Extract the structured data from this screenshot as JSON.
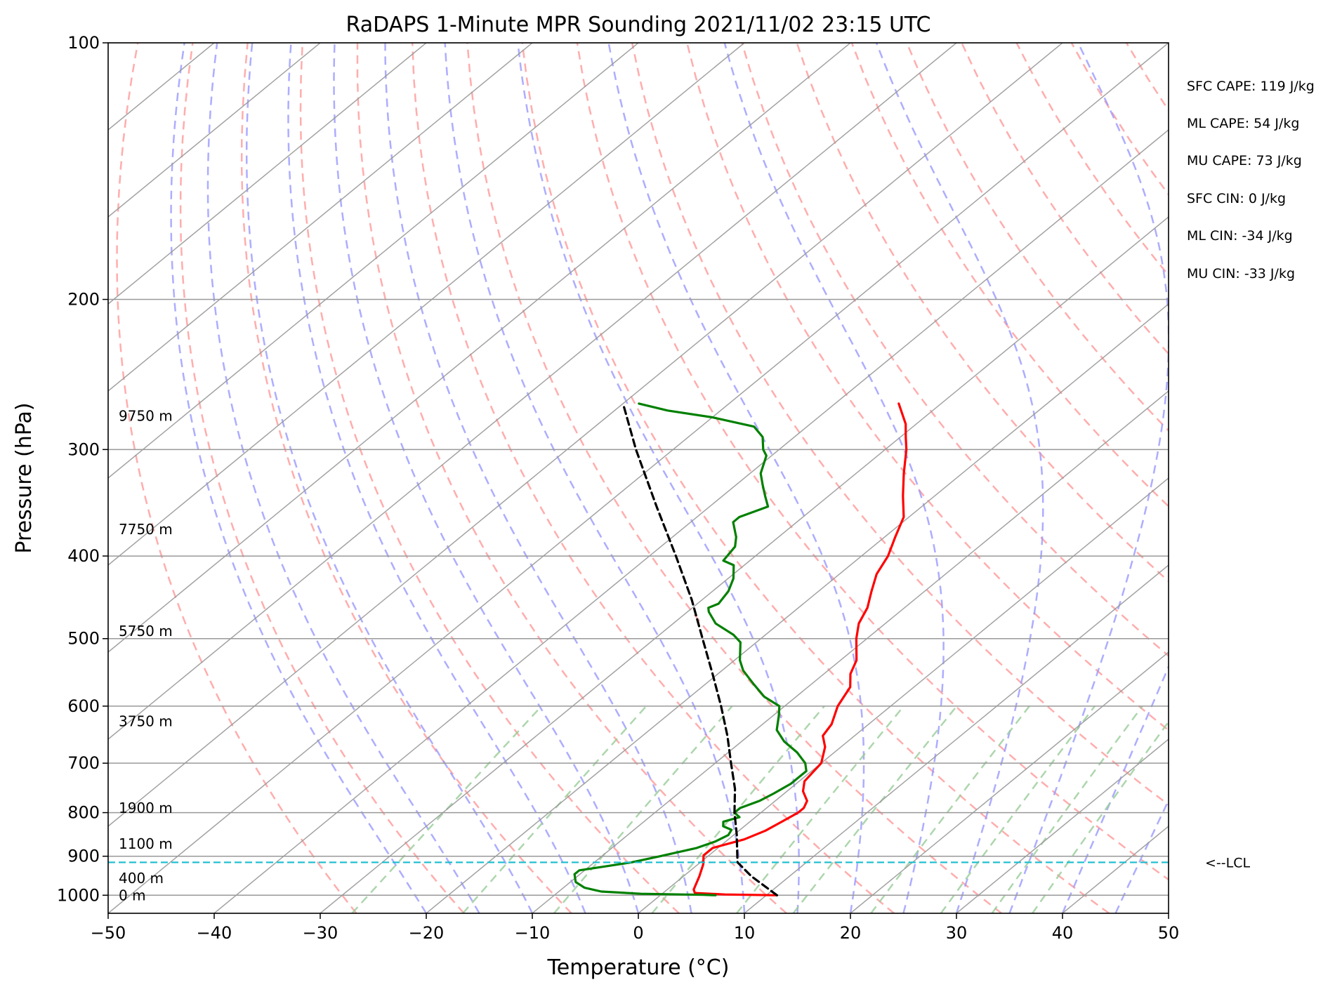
{
  "chart_data": {
    "type": "skew-t",
    "title": "RaDAPS 1-Minute MPR Sounding 2021/11/02 23:15 UTC",
    "xlabel": "Temperature (°C)",
    "ylabel": "Pressure (hPa)",
    "xlim": [
      -50,
      50
    ],
    "ylim": [
      1050,
      100
    ],
    "y_scale": "log",
    "grid": true,
    "x_ticks": [
      "−50",
      "−40",
      "−30",
      "−20",
      "−10",
      "0",
      "10",
      "20",
      "30",
      "40",
      "50"
    ],
    "y_ticks": [
      {
        "p": 100,
        "label": "100"
      },
      {
        "p": 200,
        "label": "200"
      },
      {
        "p": 300,
        "label": "300"
      },
      {
        "p": 400,
        "label": "400"
      },
      {
        "p": 500,
        "label": "500"
      },
      {
        "p": 600,
        "label": "600"
      },
      {
        "p": 700,
        "label": "700"
      },
      {
        "p": 800,
        "label": "800"
      },
      {
        "p": 900,
        "label": "900"
      },
      {
        "p": 1000,
        "label": "1000"
      }
    ],
    "height_labels": [
      {
        "p": 1000,
        "label": "0 m"
      },
      {
        "p": 955,
        "label": "400 m"
      },
      {
        "p": 870,
        "label": "1100 m"
      },
      {
        "p": 790,
        "label": "1900 m"
      },
      {
        "p": 625,
        "label": "3750 m"
      },
      {
        "p": 490,
        "label": "5750 m"
      },
      {
        "p": 372,
        "label": "7750 m"
      },
      {
        "p": 274,
        "label": "9750 m"
      }
    ],
    "stats": [
      "SFC CAPE: 119 J/kg",
      "ML CAPE: 54 J/kg",
      "MU CAPE: 73 J/kg",
      "SFC CIN: 0 J/kg",
      "ML CIN: -34 J/kg",
      "MU CIN: -33 J/kg"
    ],
    "lcl": {
      "p": 915,
      "label": "<--LCL"
    },
    "colors": {
      "temperature": "#ff0000",
      "dewpoint": "#008000",
      "parcel": "#000000",
      "lcl": "#17becf",
      "dry_adiabats": "#ff9999",
      "moist_adiabats": "#9999ff",
      "mixing_ratio": "#99cc99",
      "isotherms": "#999999"
    },
    "series": [
      {
        "name": "",
        "color": "#ff0000",
        "points": [
          {
            "p": 1000,
            "t": 11.0
          },
          {
            "p": 998,
            "t": 6.0
          },
          {
            "p": 994,
            "t": 3.0
          },
          {
            "p": 985,
            "t": 2.5
          },
          {
            "p": 950,
            "t": 1.5
          },
          {
            "p": 920,
            "t": 0.5
          },
          {
            "p": 898,
            "t": -0.5
          },
          {
            "p": 880,
            "t": -0.5
          },
          {
            "p": 860,
            "t": 1.5
          },
          {
            "p": 840,
            "t": 2.5
          },
          {
            "p": 820,
            "t": 3.0
          },
          {
            "p": 800,
            "t": 3.5
          },
          {
            "p": 790,
            "t": 3.5
          },
          {
            "p": 775,
            "t": 3.0
          },
          {
            "p": 755,
            "t": 1.5
          },
          {
            "p": 735,
            "t": 0.5
          },
          {
            "p": 700,
            "t": 0.0
          },
          {
            "p": 670,
            "t": -1.5
          },
          {
            "p": 650,
            "t": -3.0
          },
          {
            "p": 630,
            "t": -3.5
          },
          {
            "p": 600,
            "t": -5.0
          },
          {
            "p": 570,
            "t": -6.0
          },
          {
            "p": 550,
            "t": -7.5
          },
          {
            "p": 530,
            "t": -8.5
          },
          {
            "p": 500,
            "t": -11.0
          },
          {
            "p": 480,
            "t": -12.5
          },
          {
            "p": 460,
            "t": -13.5
          },
          {
            "p": 440,
            "t": -15.0
          },
          {
            "p": 420,
            "t": -16.5
          },
          {
            "p": 400,
            "t": -17.5
          },
          {
            "p": 380,
            "t": -19.0
          },
          {
            "p": 360,
            "t": -20.5
          },
          {
            "p": 340,
            "t": -23.0
          },
          {
            "p": 320,
            "t": -25.5
          },
          {
            "p": 300,
            "t": -28.0
          },
          {
            "p": 290,
            "t": -29.5
          },
          {
            "p": 280,
            "t": -31.0
          },
          {
            "p": 265,
            "t": -34.0
          }
        ]
      },
      {
        "name": "",
        "color": "#008000",
        "points": [
          {
            "p": 1000,
            "t": 5.2
          },
          {
            "p": 999,
            "t": 4.0
          },
          {
            "p": 996,
            "t": -2.0
          },
          {
            "p": 990,
            "t": -6.0
          },
          {
            "p": 980,
            "t": -8.0
          },
          {
            "p": 965,
            "t": -9.5
          },
          {
            "p": 945,
            "t": -10.5
          },
          {
            "p": 935,
            "t": -10.5
          },
          {
            "p": 925,
            "t": -8.5
          },
          {
            "p": 915,
            "t": -6.5
          },
          {
            "p": 900,
            "t": -4.5
          },
          {
            "p": 880,
            "t": -2.0
          },
          {
            "p": 865,
            "t": -1.0
          },
          {
            "p": 850,
            "t": -0.5
          },
          {
            "p": 838,
            "t": -0.8
          },
          {
            "p": 830,
            "t": -2.0
          },
          {
            "p": 820,
            "t": -2.5
          },
          {
            "p": 810,
            "t": -1.5
          },
          {
            "p": 800,
            "t": -2.5
          },
          {
            "p": 790,
            "t": -2.5
          },
          {
            "p": 775,
            "t": -1.5
          },
          {
            "p": 760,
            "t": -1.0
          },
          {
            "p": 740,
            "t": -0.5
          },
          {
            "p": 715,
            "t": -0.5
          },
          {
            "p": 700,
            "t": -1.5
          },
          {
            "p": 680,
            "t": -3.5
          },
          {
            "p": 660,
            "t": -6.0
          },
          {
            "p": 640,
            "t": -8.0
          },
          {
            "p": 615,
            "t": -9.5
          },
          {
            "p": 600,
            "t": -10.5
          },
          {
            "p": 585,
            "t": -13.0
          },
          {
            "p": 565,
            "t": -15.5
          },
          {
            "p": 545,
            "t": -18.0
          },
          {
            "p": 530,
            "t": -19.5
          },
          {
            "p": 505,
            "t": -21.5
          },
          {
            "p": 495,
            "t": -23.0
          },
          {
            "p": 480,
            "t": -26.0
          },
          {
            "p": 465,
            "t": -28.0
          },
          {
            "p": 460,
            "t": -28.5
          },
          {
            "p": 455,
            "t": -28.0
          },
          {
            "p": 440,
            "t": -28.5
          },
          {
            "p": 425,
            "t": -29.5
          },
          {
            "p": 410,
            "t": -31.0
          },
          {
            "p": 405,
            "t": -32.5
          },
          {
            "p": 390,
            "t": -33.0
          },
          {
            "p": 380,
            "t": -34.0
          },
          {
            "p": 365,
            "t": -36.0
          },
          {
            "p": 360,
            "t": -36.0
          },
          {
            "p": 350,
            "t": -34.5
          },
          {
            "p": 340,
            "t": -36.0
          },
          {
            "p": 330,
            "t": -37.5
          },
          {
            "p": 320,
            "t": -39.0
          },
          {
            "p": 305,
            "t": -40.5
          },
          {
            "p": 300,
            "t": -41.5
          },
          {
            "p": 290,
            "t": -43.0
          },
          {
            "p": 282,
            "t": -45.0
          },
          {
            "p": 275,
            "t": -50.0
          },
          {
            "p": 270,
            "t": -55.0
          },
          {
            "p": 265,
            "t": -58.5
          }
        ]
      },
      {
        "name": "",
        "color": "#000000",
        "dashed": true,
        "points": [
          {
            "p": 1000,
            "t": 11.0
          },
          {
            "p": 950,
            "t": 6.4
          },
          {
            "p": 915,
            "t": 3.5
          },
          {
            "p": 880,
            "t": 1.8
          },
          {
            "p": 850,
            "t": 0.3
          },
          {
            "p": 800,
            "t": -2.5
          },
          {
            "p": 750,
            "t": -5.2
          },
          {
            "p": 700,
            "t": -8.5
          },
          {
            "p": 650,
            "t": -12.0
          },
          {
            "p": 600,
            "t": -16.0
          },
          {
            "p": 550,
            "t": -20.5
          },
          {
            "p": 500,
            "t": -25.5
          },
          {
            "p": 450,
            "t": -31.0
          },
          {
            "p": 400,
            "t": -37.5
          },
          {
            "p": 350,
            "t": -45.0
          },
          {
            "p": 300,
            "t": -53.5
          },
          {
            "p": 265,
            "t": -60.0
          }
        ]
      }
    ]
  }
}
